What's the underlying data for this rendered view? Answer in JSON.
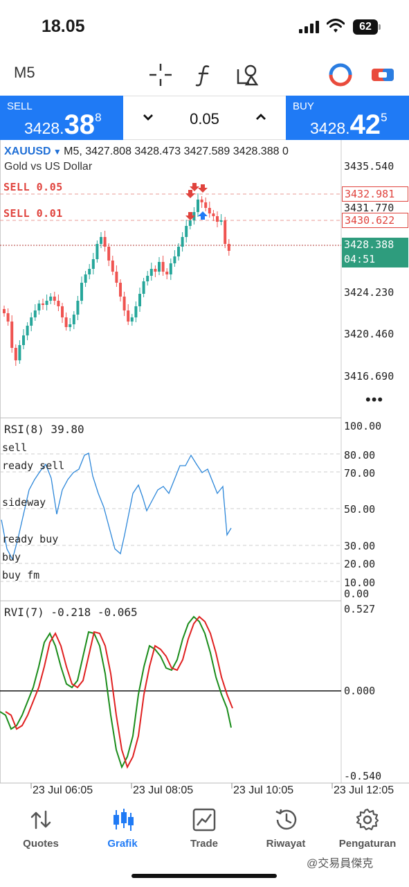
{
  "status_bar": {
    "time": "18.05",
    "battery": "62"
  },
  "toolbar": {
    "timeframe": "M5",
    "icons": [
      "crosshair-icon",
      "function-icon",
      "objects-icon",
      "one-click-trading-icon",
      "depth-of-market-icon"
    ]
  },
  "trade_bar": {
    "sell_label": "SELL",
    "sell_small": "3428.",
    "sell_big": "38",
    "sell_sup": "8",
    "buy_label": "BUY",
    "buy_small": "3428.",
    "buy_big": "42",
    "buy_sup": "5",
    "volume": "0.05"
  },
  "chart": {
    "symbol": "XAUUSD",
    "ohlc_line": "M5, 3427.808 3428.473 3427.589 3428.388 0",
    "description": "Gold vs US Dollar",
    "orders": [
      {
        "label": "SELL 0.05",
        "price": "3432.981"
      },
      {
        "label": "SELL 0.01",
        "price": "3430.622"
      }
    ],
    "price_axis": [
      "3435.540",
      "3431.770",
      "3424.230",
      "3420.460",
      "3416.690"
    ],
    "current_price": "3428.388",
    "countdown": "04:51",
    "more": "•••",
    "time_axis": [
      "23 Jul 06:05",
      "23 Jul 08:05",
      "23 Jul 10:05",
      "23 Jul 12:05"
    ],
    "colors": {
      "up": "#26a69a",
      "down": "#ef5350",
      "order": "#e0433d",
      "rsi": "#2b86d9",
      "rvi_main": "#1a8c1a",
      "rvi_signal": "#e02020"
    }
  },
  "rsi": {
    "label": "RSI(8) 39.80",
    "axis": [
      "100.00",
      "80.00",
      "70.00",
      "50.00",
      "30.00",
      "20.00",
      "10.00",
      "0.00"
    ],
    "levels": [
      "sell",
      "ready sell",
      "sideway",
      "ready buy",
      "buy",
      "buy fm"
    ]
  },
  "rvi": {
    "label": "RVI(7) -0.218 -0.065",
    "axis": [
      "0.527",
      "0.000",
      "-0.540"
    ]
  },
  "nav": {
    "items": [
      {
        "label": "Quotes",
        "icon": "quotes-arrows-icon"
      },
      {
        "label": "Grafik",
        "icon": "candlestick-icon"
      },
      {
        "label": "Trade",
        "icon": "trade-chart-icon"
      },
      {
        "label": "Riwayat",
        "icon": "history-clock-icon"
      },
      {
        "label": "Pengaturan",
        "icon": "settings-gear-icon"
      }
    ],
    "active": "Grafik"
  },
  "watermark": "@交易員傑克"
}
